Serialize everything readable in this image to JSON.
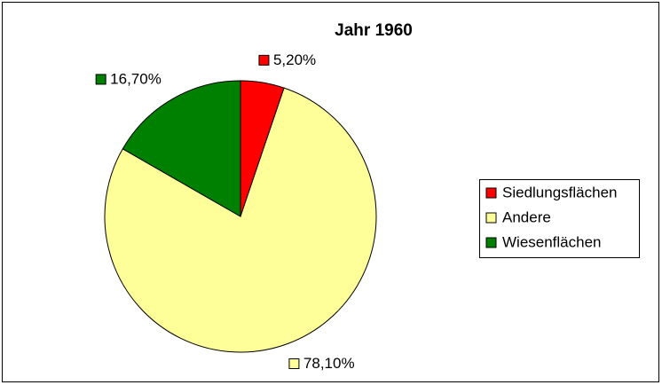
{
  "chart_data": {
    "type": "pie",
    "title": "Jahr 1960",
    "categories": [
      "Siedlungsflächen",
      "Andere",
      "Wiesenflächen"
    ],
    "values": [
      5.2,
      78.1,
      16.7
    ],
    "value_labels": [
      "5,20%",
      "78,10%",
      "16,70%"
    ],
    "colors": [
      "#ff0000",
      "#ffff99",
      "#008000"
    ],
    "legend": "right"
  }
}
